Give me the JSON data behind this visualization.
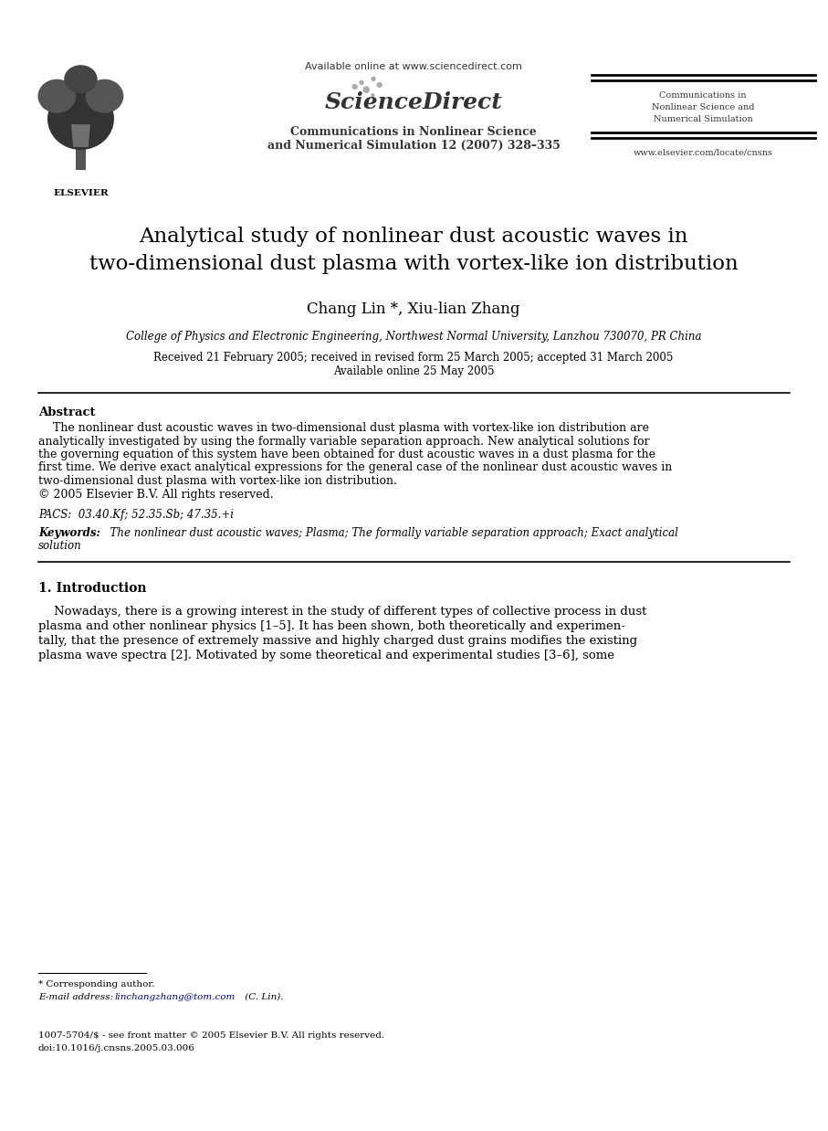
{
  "bg_color": "#ffffff",
  "title_line1": "Analytical study of nonlinear dust acoustic waves in",
  "title_line2": "two-dimensional dust plasma with vortex-like ion distribution",
  "authors": "Chang Lin *, Xiu-lian Zhang",
  "affiliation": "College of Physics and Electronic Engineering, Northwest Normal University, Lanzhou 730070, PR China",
  "date_line1": "Received 21 February 2005; received in revised form 25 March 2005; accepted 31 March 2005",
  "date_line2": "Available online 25 May 2005",
  "available_online": "Available online at www.sciencedirect.com",
  "journal_center_line1": "Communications in Nonlinear Science",
  "journal_center_line2": "and Numerical Simulation 12 (2007) 328–335",
  "journal_right_line1": "Communications in",
  "journal_right_line2": "Nonlinear Science and",
  "journal_right_line3": "Numerical Simulation",
  "website": "www.elsevier.com/locate/cnsns",
  "elsevier_label": "ELSEVIER",
  "abstract_title": "Abstract",
  "abstract_body": "    The nonlinear dust acoustic waves in two-dimensional dust plasma with vortex-like ion distribution are\nanalytically investigated by using the formally variable separation approach. New analytical solutions for\nthe governing equation of this system have been obtained for dust acoustic waves in a dust plasma for the\nfirst time. We derive exact analytical expressions for the general case of the nonlinear dust acoustic waves in\ntwo-dimensional dust plasma with vortex-like ion distribution.\n© 2005 Elsevier B.V. All rights reserved.",
  "pacs_text": "PACS:  03.40.Kf; 52.35.Sb; 47.35.+i",
  "keywords_label": "Keywords:",
  "keywords_body": "  The nonlinear dust acoustic waves; Plasma; The formally variable separation approach; Exact analytical\nsolution",
  "section1_title": "1. Introduction",
  "intro_line1": "    Nowadays, there is a growing interest in the study of different types of collective process in dust",
  "intro_line2": "plasma and other nonlinear physics [1–5]. It has been shown, both theoretically and experimen-",
  "intro_line3": "tally, that the presence of extremely massive and highly charged dust grains modifies the existing",
  "intro_line4": "plasma wave spectra [2]. Motivated by some theoretical and experimental studies [3–6], some",
  "footnote_star": "* Corresponding author.",
  "footnote_email_label": "E-mail address:",
  "footnote_email": "linchangzhang@tom.com",
  "footnote_email_suffix": " (C. Lin).",
  "copyright_line1": "1007-5704/$ - see front matter © 2005 Elsevier B.V. All rights reserved.",
  "copyright_line2": "doi:10.1016/j.cnsns.2005.03.006",
  "text_color": "#000000",
  "link_color": "#000099"
}
